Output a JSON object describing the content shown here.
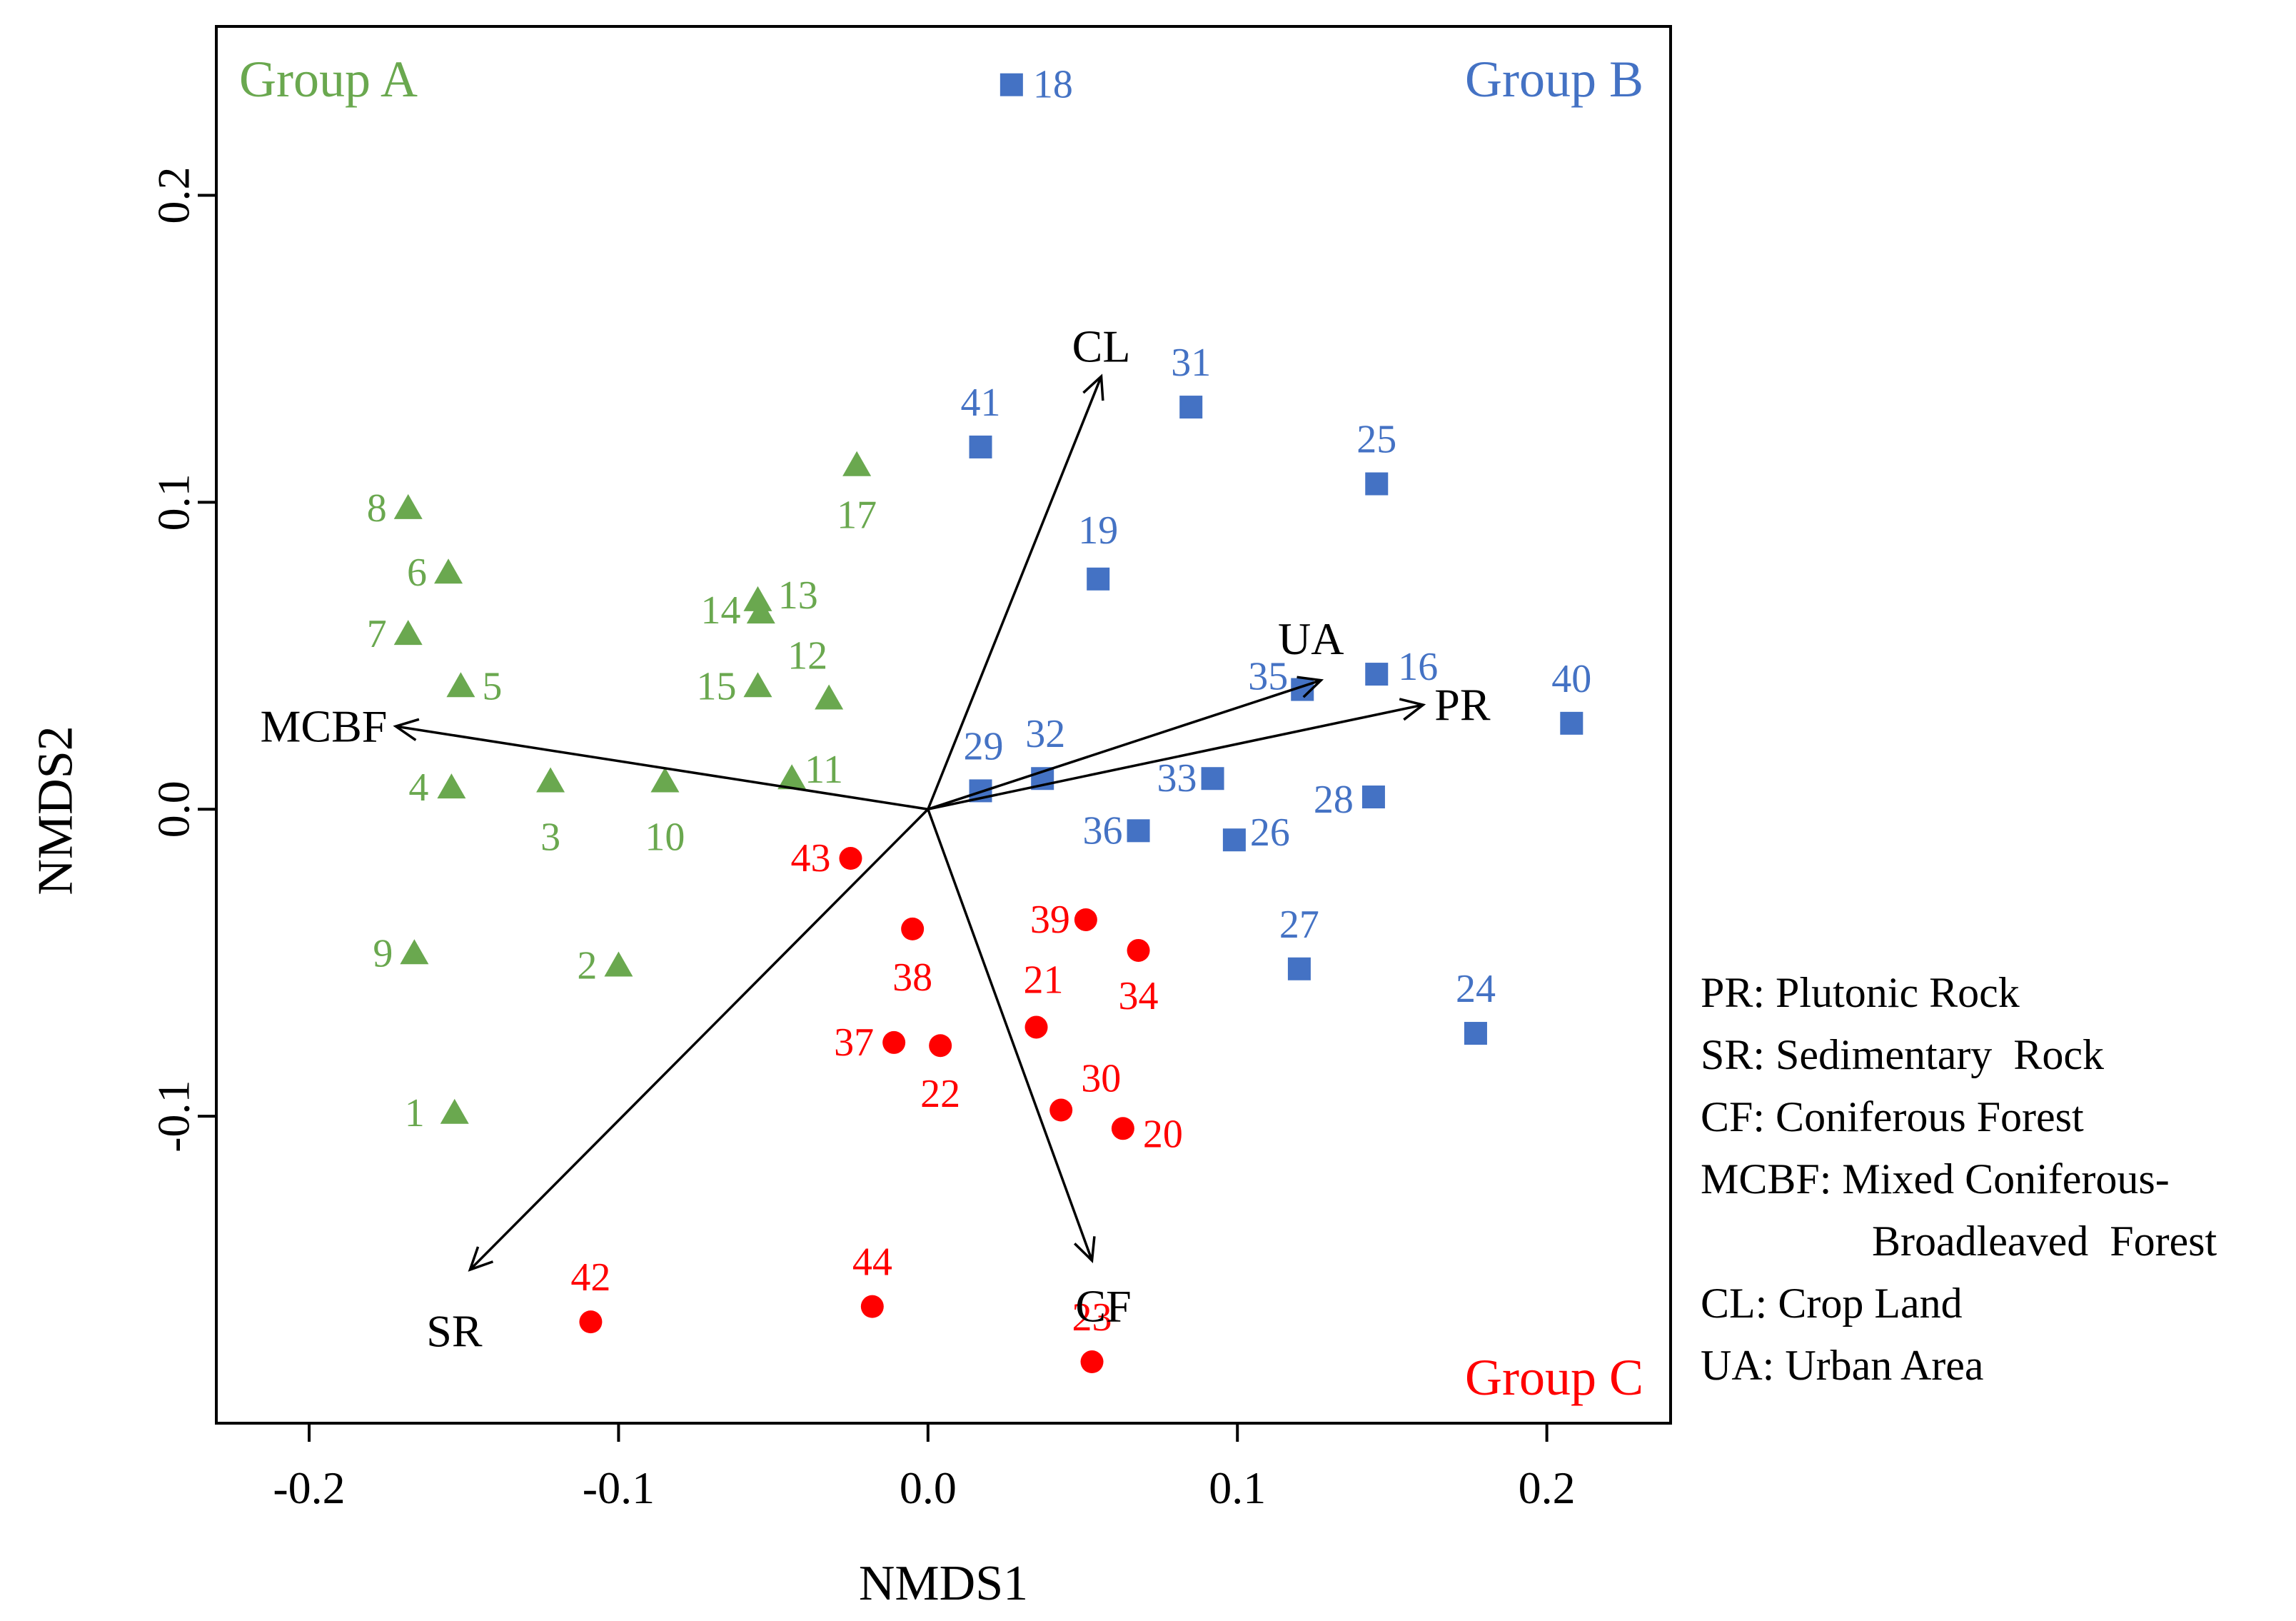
{
  "chart_data": {
    "type": "scatter",
    "xlabel": "NMDS1",
    "ylabel": "NMDS2",
    "xlim": [
      -0.23,
      0.24
    ],
    "ylim": [
      -0.2,
      0.255
    ],
    "x_ticks": [
      -0.2,
      -0.1,
      0.0,
      0.1,
      0.2
    ],
    "x_tick_labels": [
      "-0.2",
      "-0.1",
      "0.0",
      "0.1",
      "0.2"
    ],
    "y_ticks": [
      -0.1,
      0.0,
      0.1,
      0.2
    ],
    "y_tick_labels": [
      "-0.1",
      "0.0",
      "0.1",
      "0.2"
    ],
    "grid": false,
    "groups": [
      {
        "name": "Group A",
        "color": "#6aa84f",
        "marker": "triangle",
        "label_position": "top-left",
        "points": [
          {
            "id": "1",
            "x": -0.153,
            "y": -0.099
          },
          {
            "id": "2",
            "x": -0.1,
            "y": -0.051
          },
          {
            "id": "3",
            "x": -0.122,
            "y": 0.009
          },
          {
            "id": "4",
            "x": -0.154,
            "y": 0.007
          },
          {
            "id": "5",
            "x": -0.151,
            "y": 0.04
          },
          {
            "id": "6",
            "x": -0.155,
            "y": 0.077
          },
          {
            "id": "7",
            "x": -0.168,
            "y": 0.057
          },
          {
            "id": "8",
            "x": -0.168,
            "y": 0.098
          },
          {
            "id": "9",
            "x": -0.166,
            "y": -0.047
          },
          {
            "id": "10",
            "x": -0.085,
            "y": 0.009
          },
          {
            "id": "11",
            "x": -0.044,
            "y": 0.01
          },
          {
            "id": "12",
            "x": -0.032,
            "y": 0.036
          },
          {
            "id": "13",
            "x": -0.054,
            "y": 0.064
          },
          {
            "id": "14",
            "x": -0.055,
            "y": 0.068
          },
          {
            "id": "15",
            "x": -0.055,
            "y": 0.04
          },
          {
            "id": "17",
            "x": -0.023,
            "y": 0.112
          }
        ]
      },
      {
        "name": "Group B",
        "color": "#4472c4",
        "marker": "square",
        "label_position": "top-right",
        "points": [
          {
            "id": "16",
            "x": 0.145,
            "y": 0.044
          },
          {
            "id": "18",
            "x": 0.027,
            "y": 0.236
          },
          {
            "id": "19",
            "x": 0.055,
            "y": 0.075
          },
          {
            "id": "24",
            "x": 0.177,
            "y": -0.073
          },
          {
            "id": "25",
            "x": 0.145,
            "y": 0.106
          },
          {
            "id": "26",
            "x": 0.099,
            "y": -0.01
          },
          {
            "id": "27",
            "x": 0.12,
            "y": -0.052
          },
          {
            "id": "28",
            "x": 0.144,
            "y": 0.004
          },
          {
            "id": "29",
            "x": 0.017,
            "y": 0.006
          },
          {
            "id": "31",
            "x": 0.085,
            "y": 0.131
          },
          {
            "id": "32",
            "x": 0.037,
            "y": 0.01
          },
          {
            "id": "33",
            "x": 0.092,
            "y": 0.01
          },
          {
            "id": "35",
            "x": 0.121,
            "y": 0.039
          },
          {
            "id": "36",
            "x": 0.068,
            "y": -0.007
          },
          {
            "id": "40",
            "x": 0.208,
            "y": 0.028
          },
          {
            "id": "41",
            "x": 0.017,
            "y": 0.118
          }
        ]
      },
      {
        "name": "Group C",
        "color": "#ff0000",
        "marker": "circle",
        "label_position": "bottom-right",
        "points": [
          {
            "id": "20",
            "x": 0.063,
            "y": -0.104
          },
          {
            "id": "21",
            "x": 0.035,
            "y": -0.071
          },
          {
            "id": "22",
            "x": 0.004,
            "y": -0.077
          },
          {
            "id": "23",
            "x": 0.053,
            "y": -0.18
          },
          {
            "id": "30",
            "x": 0.043,
            "y": -0.098
          },
          {
            "id": "34",
            "x": 0.068,
            "y": -0.046
          },
          {
            "id": "37",
            "x": -0.011,
            "y": -0.076
          },
          {
            "id": "38",
            "x": -0.005,
            "y": -0.039
          },
          {
            "id": "39",
            "x": 0.051,
            "y": -0.036
          },
          {
            "id": "42",
            "x": -0.109,
            "y": -0.167
          },
          {
            "id": "43",
            "x": -0.025,
            "y": -0.016
          },
          {
            "id": "44",
            "x": -0.018,
            "y": -0.162
          }
        ]
      }
    ],
    "vectors": [
      {
        "name": "CL",
        "x": 0.056,
        "y": 0.141
      },
      {
        "name": "UA",
        "x": 0.127,
        "y": 0.042
      },
      {
        "name": "PR",
        "x": 0.16,
        "y": 0.034
      },
      {
        "name": "MCBF",
        "x": -0.172,
        "y": 0.027
      },
      {
        "name": "SR",
        "x": -0.148,
        "y": -0.15
      },
      {
        "name": "CF",
        "x": 0.053,
        "y": -0.147
      }
    ],
    "legend": {
      "placement": "right",
      "entries": [
        "PR: Plutonic Rock",
        "SR: Sedimentary  Rock",
        "CF: Coniferous Forest",
        "MCBF: Mixed Coniferous-",
        "Broadleaved  Forest",
        "CL: Crop Land",
        "UA: Urban Area"
      ]
    }
  }
}
